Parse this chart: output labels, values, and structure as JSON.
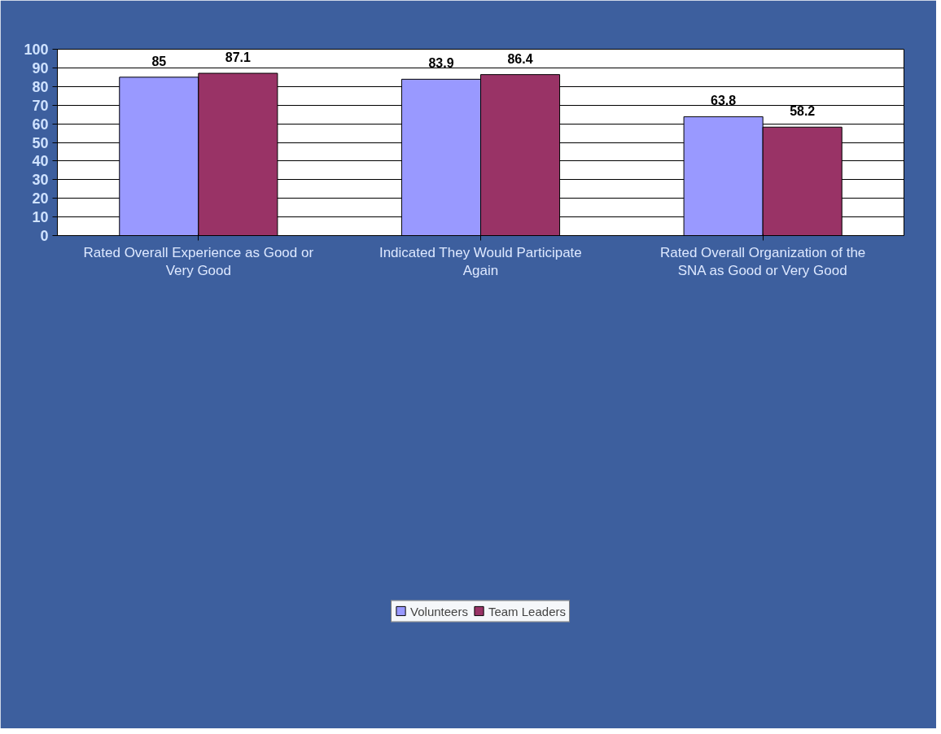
{
  "chart_data": {
    "type": "bar",
    "categories": [
      "Rated Overall Experience as Good or Very Good",
      "Indicated They Would Participate Again",
      "Rated Overall Organization of the SNA as Good or Very Good"
    ],
    "series": [
      {
        "name": "Volunteers",
        "color": "#9999ff",
        "values": [
          85,
          83.9,
          63.8
        ]
      },
      {
        "name": "Team Leaders",
        "color": "#993366",
        "values": [
          87.1,
          86.4,
          58.2
        ]
      }
    ],
    "ylim": [
      0,
      100
    ],
    "yticks": [
      0,
      10,
      20,
      30,
      40,
      50,
      60,
      70,
      80,
      90,
      100
    ],
    "grid": "y",
    "legend": "bottom",
    "data_labels": true
  }
}
